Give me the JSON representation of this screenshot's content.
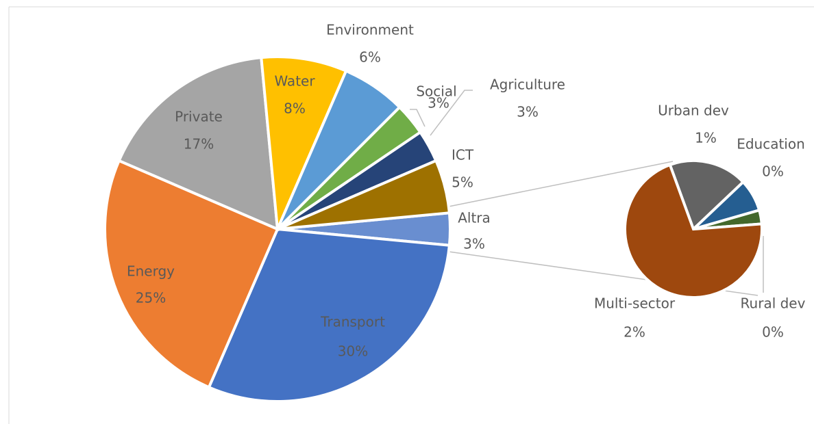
{
  "chart_data": {
    "type": "pie-of-pie",
    "categories": [
      "Altra",
      "Transport",
      "Energy",
      "Private",
      "Water",
      "Environment",
      "Social",
      "Agriculture",
      "ICT"
    ],
    "values": [
      3,
      30,
      25,
      17,
      8,
      6,
      3,
      3,
      5
    ],
    "value_labels": [
      "3%",
      "30%",
      "25%",
      "17%",
      "8%",
      "6%",
      "3%",
      "3%",
      "5%"
    ],
    "colors": [
      "#698ed0",
      "#4472c4",
      "#ed7d31",
      "#a5a5a5",
      "#ffc000",
      "#5b9bd5",
      "#70ad47",
      "#264478",
      "#9e7100"
    ],
    "secondary": {
      "categories": [
        "Urban dev",
        "Education",
        "Rural dev",
        "Multi-sector"
      ],
      "values": [
        0.51,
        0.21,
        0.09,
        1.95
      ],
      "value_labels": [
        "1%",
        "0%",
        "0%",
        "2%"
      ],
      "colors": [
        "#636363",
        "#255e91",
        "#43682b",
        "#9e480e"
      ]
    }
  }
}
